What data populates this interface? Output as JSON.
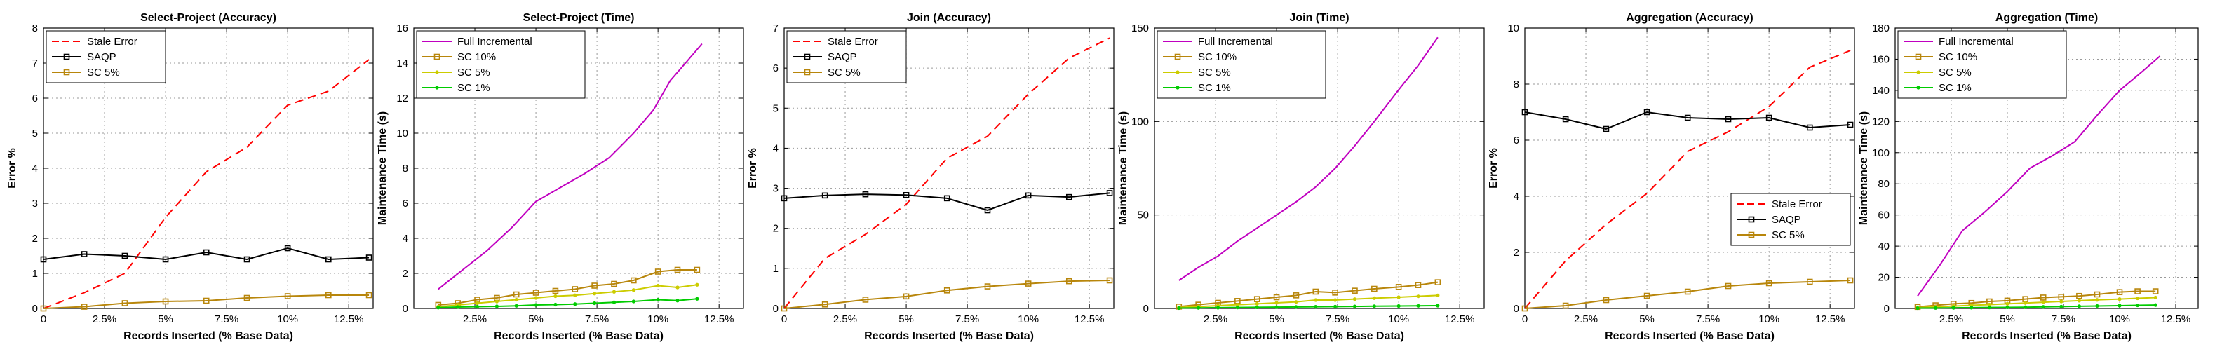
{
  "chart_data": [
    {
      "type": "line",
      "title": "Select-Project (Accuracy)",
      "xlabel": "Records Inserted (% Base Data)",
      "ylabel": "Error %",
      "xlim": [
        0,
        13.5
      ],
      "ylim": [
        0,
        8
      ],
      "xticks": [
        0,
        2.5,
        5,
        7.5,
        10,
        12.5
      ],
      "xtick_labels": [
        "0",
        "2.5%",
        "5%",
        "7.5%",
        "10%",
        "12.5%"
      ],
      "yticks": [
        0,
        1,
        2,
        3,
        4,
        5,
        6,
        7,
        8
      ],
      "ytick_labels": [
        "0",
        "1",
        "2",
        "3",
        "4",
        "5",
        "6",
        "7",
        "8"
      ],
      "grid": true,
      "legend_position": "top-left",
      "series": [
        {
          "name": "Stale Error",
          "color": "#ff0000",
          "style": "dashed",
          "marker": "none",
          "x": [
            0,
            1.67,
            3.33,
            5,
            6.67,
            8.33,
            10,
            11.67,
            13.33
          ],
          "y": [
            0,
            0.45,
            1.0,
            2.6,
            3.9,
            4.6,
            5.8,
            6.2,
            7.1
          ]
        },
        {
          "name": "SAQP",
          "color": "#000000",
          "style": "solid",
          "marker": "square",
          "x": [
            0,
            1.67,
            3.33,
            5,
            6.67,
            8.33,
            10,
            11.67,
            13.33
          ],
          "y": [
            1.4,
            1.55,
            1.5,
            1.4,
            1.6,
            1.4,
            1.72,
            1.4,
            1.45
          ]
        },
        {
          "name": "SC 5%",
          "color": "#b8860b",
          "style": "solid",
          "marker": "square",
          "x": [
            0,
            1.67,
            3.33,
            5,
            6.67,
            8.33,
            10,
            11.67,
            13.33
          ],
          "y": [
            0,
            0.05,
            0.15,
            0.2,
            0.22,
            0.3,
            0.35,
            0.38,
            0.38
          ]
        }
      ]
    },
    {
      "type": "line",
      "title": "Select-Project (Time)",
      "xlabel": "Records Inserted (% Base Data)",
      "ylabel": "Maintenance Time (s)",
      "xlim": [
        0,
        13.5
      ],
      "ylim": [
        0,
        16
      ],
      "xticks": [
        2.5,
        5,
        7.5,
        10,
        12.5
      ],
      "xtick_labels": [
        "2.5%",
        "5%",
        "7.5%",
        "10%",
        "12.5%"
      ],
      "yticks": [
        0,
        2,
        4,
        6,
        8,
        10,
        12,
        14,
        16
      ],
      "ytick_labels": [
        "0",
        "2",
        "4",
        "6",
        "8",
        "10",
        "12",
        "14",
        "16"
      ],
      "grid": true,
      "legend_position": "top-left",
      "series": [
        {
          "name": "Full Incremental",
          "color": "#c000c0",
          "style": "solid",
          "marker": "none",
          "x": [
            1,
            2,
            3,
            4,
            5,
            6,
            7,
            8,
            9,
            9.8,
            10.5,
            11,
            11.8
          ],
          "y": [
            1.1,
            2.2,
            3.3,
            4.6,
            6.1,
            6.9,
            7.7,
            8.6,
            10.0,
            11.3,
            13.0,
            13.8,
            15.1
          ]
        },
        {
          "name": "SC 10%",
          "color": "#b8860b",
          "style": "solid",
          "marker": "square",
          "x": [
            1,
            1.8,
            2.6,
            3.4,
            4.2,
            5,
            5.8,
            6.6,
            7.4,
            8.2,
            9,
            10,
            10.8,
            11.6
          ],
          "y": [
            0.2,
            0.3,
            0.5,
            0.6,
            0.8,
            0.9,
            1.0,
            1.1,
            1.3,
            1.4,
            1.6,
            2.1,
            2.2,
            2.2
          ]
        },
        {
          "name": "SC 5%",
          "color": "#cccc00",
          "style": "solid",
          "marker": "dot",
          "x": [
            1,
            1.8,
            2.6,
            3.4,
            4.2,
            5,
            5.8,
            6.6,
            7.4,
            8.2,
            9,
            10,
            10.8,
            11.6
          ],
          "y": [
            0.1,
            0.2,
            0.3,
            0.4,
            0.5,
            0.6,
            0.7,
            0.75,
            0.85,
            0.95,
            1.05,
            1.3,
            1.2,
            1.35
          ]
        },
        {
          "name": "SC 1%",
          "color": "#00cc00",
          "style": "solid",
          "marker": "dot",
          "x": [
            1,
            1.8,
            2.6,
            3.4,
            4.2,
            5,
            5.8,
            6.6,
            7.4,
            8.2,
            9,
            10,
            10.8,
            11.6
          ],
          "y": [
            0.05,
            0.08,
            0.1,
            0.12,
            0.15,
            0.2,
            0.22,
            0.25,
            0.3,
            0.35,
            0.4,
            0.5,
            0.45,
            0.55
          ]
        }
      ]
    },
    {
      "type": "line",
      "title": "Join (Accuracy)",
      "xlabel": "Records Inserted (% Base Data)",
      "ylabel": "Error %",
      "xlim": [
        0,
        13.5
      ],
      "ylim": [
        0,
        7
      ],
      "xticks": [
        0,
        2.5,
        5,
        7.5,
        10,
        12.5
      ],
      "xtick_labels": [
        "0",
        "2.5%",
        "5%",
        "7.5%",
        "10%",
        "12.5%"
      ],
      "yticks": [
        0,
        1,
        2,
        3,
        4,
        5,
        6,
        7
      ],
      "ytick_labels": [
        "0",
        "1",
        "2",
        "3",
        "4",
        "5",
        "6",
        "7"
      ],
      "grid": true,
      "legend_position": "top-left",
      "series": [
        {
          "name": "Stale Error",
          "color": "#ff0000",
          "style": "dashed",
          "marker": "none",
          "x": [
            0,
            1.67,
            3.33,
            5,
            6.67,
            8.33,
            10,
            11.67,
            13.33
          ],
          "y": [
            0,
            1.25,
            1.85,
            2.6,
            3.75,
            4.3,
            5.35,
            6.25,
            6.75
          ]
        },
        {
          "name": "SAQP",
          "color": "#000000",
          "style": "solid",
          "marker": "square",
          "x": [
            0,
            1.67,
            3.33,
            5,
            6.67,
            8.33,
            10,
            11.67,
            13.33
          ],
          "y": [
            2.75,
            2.82,
            2.85,
            2.83,
            2.75,
            2.45,
            2.82,
            2.78,
            2.88
          ]
        },
        {
          "name": "SC 5%",
          "color": "#b8860b",
          "style": "solid",
          "marker": "square",
          "x": [
            0,
            1.67,
            3.33,
            5,
            6.67,
            8.33,
            10,
            11.67,
            13.33
          ],
          "y": [
            0,
            0.1,
            0.22,
            0.3,
            0.45,
            0.55,
            0.62,
            0.68,
            0.7
          ]
        }
      ]
    },
    {
      "type": "line",
      "title": "Join (Time)",
      "xlabel": "Records Inserted (% Base Data)",
      "ylabel": "Maintenance Time (s)",
      "xlim": [
        0,
        13.5
      ],
      "ylim": [
        0,
        150
      ],
      "xticks": [
        2.5,
        5,
        7.5,
        10,
        12.5
      ],
      "xtick_labels": [
        "2.5%",
        "5%",
        "7.5%",
        "10%",
        "12.5%"
      ],
      "yticks": [
        0,
        50,
        100,
        150
      ],
      "ytick_labels": [
        "0",
        "50",
        "100",
        "150"
      ],
      "grid": true,
      "legend_position": "top-left",
      "series": [
        {
          "name": "Full Incremental",
          "color": "#c000c0",
          "style": "solid",
          "marker": "none",
          "x": [
            1,
            1.8,
            2.6,
            3.4,
            4.2,
            5,
            5.8,
            6.6,
            7.4,
            8.2,
            9,
            10,
            10.8,
            11.6
          ],
          "y": [
            15,
            22,
            28,
            36,
            43,
            50,
            57,
            65,
            75,
            87,
            100,
            117,
            130,
            145
          ]
        },
        {
          "name": "SC 10%",
          "color": "#b8860b",
          "style": "solid",
          "marker": "square",
          "x": [
            1,
            1.8,
            2.6,
            3.4,
            4.2,
            5,
            5.8,
            6.6,
            7.4,
            8.2,
            9,
            10,
            10.8,
            11.6
          ],
          "y": [
            1,
            2,
            3,
            4,
            5,
            6,
            7,
            9,
            8.5,
            9.5,
            10.5,
            11.5,
            12.5,
            14
          ]
        },
        {
          "name": "SC 5%",
          "color": "#cccc00",
          "style": "solid",
          "marker": "dot",
          "x": [
            1,
            1.8,
            2.6,
            3.4,
            4.2,
            5,
            5.8,
            6.6,
            7.4,
            8.2,
            9,
            10,
            10.8,
            11.6
          ],
          "y": [
            0.5,
            1,
            1.5,
            2,
            2.5,
            3,
            3.5,
            4.5,
            4.5,
            5,
            5.5,
            6,
            6.5,
            7
          ]
        },
        {
          "name": "SC 1%",
          "color": "#00cc00",
          "style": "solid",
          "marker": "dot",
          "x": [
            1,
            1.8,
            2.6,
            3.4,
            4.2,
            5,
            5.8,
            6.6,
            7.4,
            8.2,
            9,
            10,
            10.8,
            11.6
          ],
          "y": [
            0.2,
            0.3,
            0.4,
            0.5,
            0.6,
            0.7,
            0.8,
            0.9,
            1,
            1.1,
            1.2,
            1.3,
            1.4,
            1.5
          ]
        }
      ]
    },
    {
      "type": "line",
      "title": "Aggregation (Accuracy)",
      "xlabel": "Records Inserted (% Base Data)",
      "ylabel": "Error %",
      "xlim": [
        0,
        13.5
      ],
      "ylim": [
        0,
        10
      ],
      "xticks": [
        0,
        2.5,
        5,
        7.5,
        10,
        12.5
      ],
      "xtick_labels": [
        "0",
        "2.5%",
        "5%",
        "7.5%",
        "10%",
        "12.5%"
      ],
      "yticks": [
        0,
        2,
        4,
        6,
        8,
        10
      ],
      "ytick_labels": [
        "0",
        "2",
        "4",
        "6",
        "8",
        "10"
      ],
      "grid": true,
      "legend_position": "lower-right",
      "series": [
        {
          "name": "Stale Error",
          "color": "#ff0000",
          "style": "dashed",
          "marker": "none",
          "x": [
            0,
            1.67,
            3.33,
            5,
            6.67,
            8.33,
            10,
            11.67,
            13.33
          ],
          "y": [
            0,
            1.7,
            3.0,
            4.1,
            5.6,
            6.3,
            7.2,
            8.6,
            9.2
          ]
        },
        {
          "name": "SAQP",
          "color": "#000000",
          "style": "solid",
          "marker": "square",
          "x": [
            0,
            1.67,
            3.33,
            5,
            6.67,
            8.33,
            10,
            11.67,
            13.33
          ],
          "y": [
            7.0,
            6.75,
            6.4,
            7.0,
            6.8,
            6.75,
            6.8,
            6.45,
            6.55
          ]
        },
        {
          "name": "SC 5%",
          "color": "#b8860b",
          "style": "solid",
          "marker": "square",
          "x": [
            0,
            1.67,
            3.33,
            5,
            6.67,
            8.33,
            10,
            11.67,
            13.33
          ],
          "y": [
            0,
            0.1,
            0.3,
            0.45,
            0.6,
            0.8,
            0.9,
            0.95,
            1.0
          ]
        }
      ]
    },
    {
      "type": "line",
      "title": "Aggregation (Time)",
      "xlabel": "Records Inserted (% Base Data)",
      "ylabel": "Maintenance Time (s)",
      "xlim": [
        0,
        13.5
      ],
      "ylim": [
        0,
        180
      ],
      "xticks": [
        2.5,
        5,
        7.5,
        10,
        12.5
      ],
      "xtick_labels": [
        "2.5%",
        "5%",
        "7.5%",
        "10%",
        "12.5%"
      ],
      "yticks": [
        0,
        20,
        40,
        60,
        80,
        100,
        120,
        140,
        160,
        180
      ],
      "ytick_labels": [
        "0",
        "20",
        "40",
        "60",
        "80",
        "100",
        "120",
        "140",
        "160",
        "180"
      ],
      "grid": true,
      "legend_position": "top-left",
      "series": [
        {
          "name": "Full Incremental",
          "color": "#c000c0",
          "style": "solid",
          "marker": "none",
          "x": [
            1,
            2,
            3,
            4,
            5,
            6,
            7,
            8,
            9,
            10,
            11,
            11.8
          ],
          "y": [
            8,
            28,
            50,
            62,
            75,
            90,
            98,
            107,
            124,
            140,
            152,
            162
          ]
        },
        {
          "name": "SC 10%",
          "color": "#b8860b",
          "style": "solid",
          "marker": "square",
          "x": [
            1,
            1.8,
            2.6,
            3.4,
            4.2,
            5,
            5.8,
            6.6,
            7.4,
            8.2,
            9,
            10,
            10.8,
            11.6
          ],
          "y": [
            1,
            2,
            3,
            3.5,
            4.5,
            5,
            6,
            7,
            7.5,
            8,
            9,
            10.5,
            11,
            11
          ]
        },
        {
          "name": "SC 5%",
          "color": "#cccc00",
          "style": "solid",
          "marker": "dot",
          "x": [
            1,
            1.8,
            2.6,
            3.4,
            4.2,
            5,
            5.8,
            6.6,
            7.4,
            8.2,
            9,
            10,
            10.8,
            11.6
          ],
          "y": [
            0.5,
            1,
            1.5,
            2,
            2.5,
            3,
            3.5,
            4,
            4.5,
            5,
            5.5,
            6,
            6.5,
            7
          ]
        },
        {
          "name": "SC 1%",
          "color": "#00cc00",
          "style": "solid",
          "marker": "dot",
          "x": [
            1,
            1.8,
            2.6,
            3.4,
            4.2,
            5,
            5.8,
            6.6,
            7.4,
            8.2,
            9,
            10,
            10.8,
            11.6
          ],
          "y": [
            0.2,
            0.3,
            0.4,
            0.5,
            0.6,
            0.7,
            0.8,
            1,
            1.2,
            1.4,
            1.6,
            1.8,
            2.0,
            2.2
          ]
        }
      ]
    }
  ]
}
